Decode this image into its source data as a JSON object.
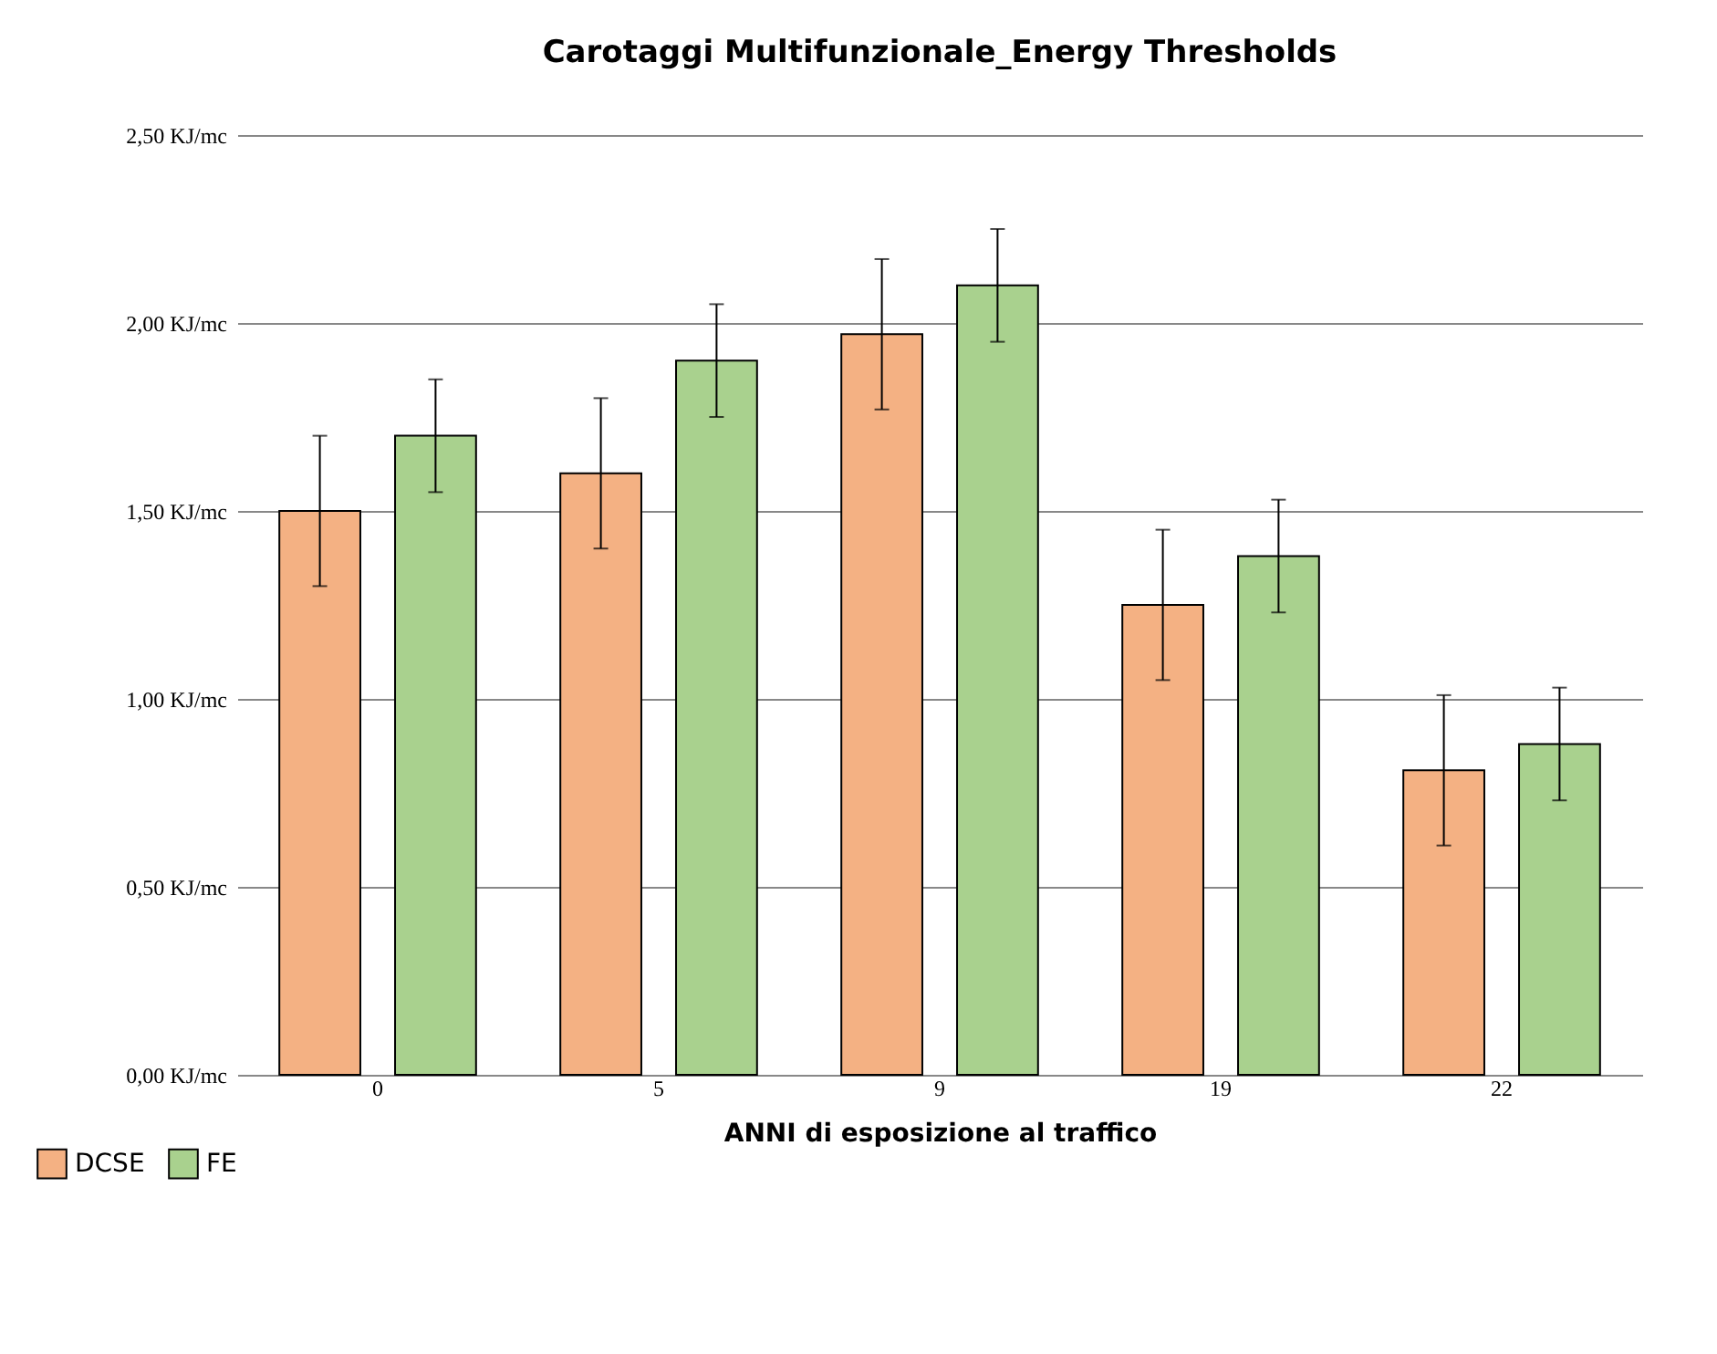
{
  "chart_data": {
    "type": "bar",
    "title": "Carotaggi Multifunzionale_Energy Thresholds",
    "xlabel": "ANNI di esposizione al traffico",
    "categories": [
      "0",
      "5",
      "9",
      "19",
      "22"
    ],
    "series": [
      {
        "name": "DCSE",
        "color": "#f4b183",
        "values": [
          1.5,
          1.6,
          1.97,
          1.25,
          0.81
        ],
        "errors": [
          0.2,
          0.2,
          0.2,
          0.2,
          0.2
        ]
      },
      {
        "name": "FE",
        "color": "#a9d18e",
        "values": [
          1.7,
          1.9,
          2.1,
          1.38,
          0.88
        ],
        "errors": [
          0.15,
          0.15,
          0.15,
          0.15,
          0.15
        ]
      }
    ],
    "ylim": [
      0,
      2.5
    ],
    "yticks": [
      {
        "value": 0,
        "label": "0,00 KJ/mc"
      },
      {
        "value": 0.5,
        "label": "0,50 KJ/mc"
      },
      {
        "value": 1,
        "label": "1,00 KJ/mc"
      },
      {
        "value": 1.5,
        "label": "1,50 KJ/mc"
      },
      {
        "value": 2,
        "label": "2,00 KJ/mc"
      },
      {
        "value": 2.5,
        "label": "2,50 KJ/mc"
      }
    ],
    "grid": "y",
    "legend": "bottom left"
  }
}
